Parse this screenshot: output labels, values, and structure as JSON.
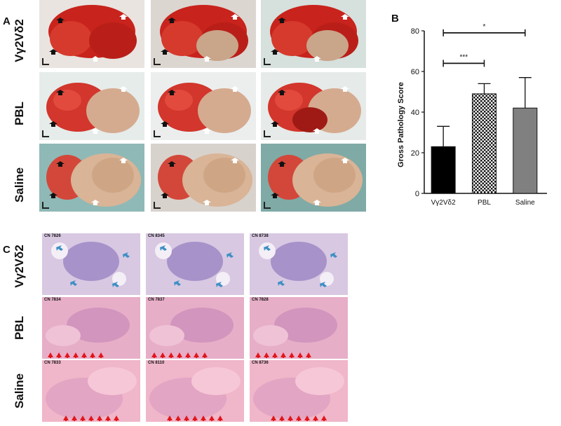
{
  "panels": {
    "a": "A",
    "b": "B",
    "c": "C"
  },
  "panel_a": {
    "rows": [
      {
        "label": "Vγ2Vδ2",
        "photos": 3
      },
      {
        "label": "PBL",
        "photos": 3
      },
      {
        "label": "Saline",
        "photos": 3
      }
    ]
  },
  "panel_c": {
    "rows": [
      {
        "label": "Vγ2Vδ2",
        "ids": [
          "CN 7826",
          "CN 8345",
          "CN 8738"
        ]
      },
      {
        "label": "PBL",
        "ids": [
          "CN 7834",
          "CN 7837",
          "CN 7828"
        ]
      },
      {
        "label": "Saline",
        "ids": [
          "CN 7833",
          "CN 8110",
          "CN 8736"
        ]
      }
    ]
  },
  "chart_data": {
    "type": "bar",
    "title": "",
    "ylabel": "Gross Pathology Score",
    "xlabel": "",
    "categories": [
      "Vγ2Vδ2",
      "PBL",
      "Saline"
    ],
    "values": [
      23,
      49,
      42
    ],
    "error": [
      10,
      5,
      15
    ],
    "ylim": [
      0,
      80
    ],
    "yticks": [
      0,
      20,
      40,
      60,
      80
    ],
    "bar_colors": [
      "#000000",
      "checkered",
      "#808080"
    ],
    "significance": [
      {
        "from": "Vγ2Vδ2",
        "to": "PBL",
        "label": "***"
      },
      {
        "from": "Vγ2Vδ2",
        "to": "Saline",
        "label": "*"
      }
    ]
  }
}
